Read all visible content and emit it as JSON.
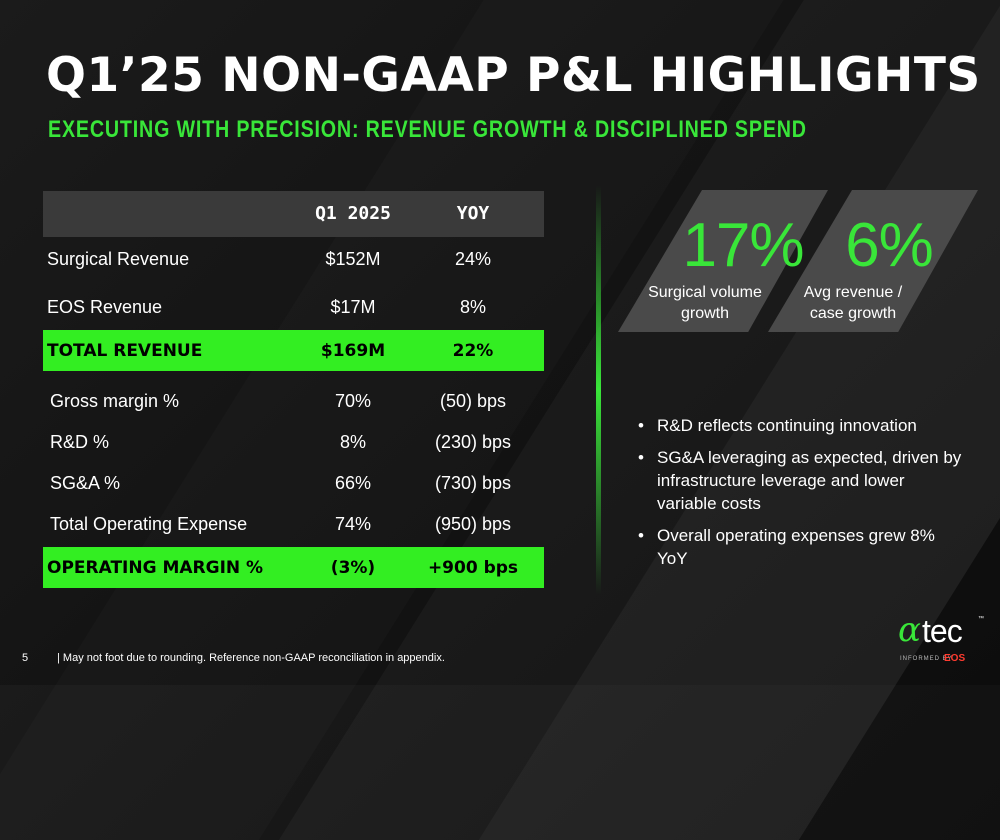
{
  "title": "Q1’25 NON-GAAP P&L HIGHLIGHTS",
  "subtitle": "EXECUTING WITH PRECISION: REVENUE GROWTH & DISCIPLINED SPEND",
  "table": {
    "headers": {
      "label": "",
      "q": "Q1 2025",
      "yoy": "YOY"
    },
    "rows": [
      {
        "label": "Surgical Revenue",
        "q": "$152M",
        "yoy": "24%",
        "highlight": false
      },
      {
        "label": "EOS Revenue",
        "q": "$17M",
        "yoy": "8%",
        "highlight": false
      },
      {
        "label": "TOTAL REVENUE",
        "q": "$169M",
        "yoy": "22%",
        "highlight": true
      },
      {
        "label": "Gross margin %",
        "q": "70%",
        "yoy": "(50) bps",
        "highlight": false
      },
      {
        "label": "R&D %",
        "q": "8%",
        "yoy": "(230) bps",
        "highlight": false
      },
      {
        "label": "SG&A %",
        "q": "66%",
        "yoy": "(730) bps",
        "highlight": false
      },
      {
        "label": "Total Operating Expense",
        "q": "74%",
        "yoy": "(950) bps",
        "highlight": false
      },
      {
        "label": "OPERATING MARGIN %",
        "q": "(3%)",
        "yoy": "+900 bps",
        "highlight": true
      }
    ]
  },
  "stats": [
    {
      "value": "17%",
      "caption": "Surgical volume growth"
    },
    {
      "value": "6%",
      "caption": "Avg revenue / case growth"
    }
  ],
  "bullets": [
    "R&D reflects continuing innovation",
    "SG&A leveraging as expected, driven by infrastructure leverage and lower variable costs",
    "Overall operating expenses grew 8% YoY"
  ],
  "footer": {
    "page_number": "5",
    "note": "| May not foot due to rounding.  Reference non-GAAP reconciliation in appendix."
  },
  "logo": {
    "alpha": "α",
    "name": "tec",
    "tm": "™",
    "tagline": "INFORMED BY",
    "eos": "EOS"
  },
  "colors": {
    "accent_green": "#39e639",
    "highlight_green": "#33ee22",
    "header_gray": "#3a3a3a",
    "card_gray": "#4a4a4a",
    "eos_red": "#ff3b2f"
  }
}
